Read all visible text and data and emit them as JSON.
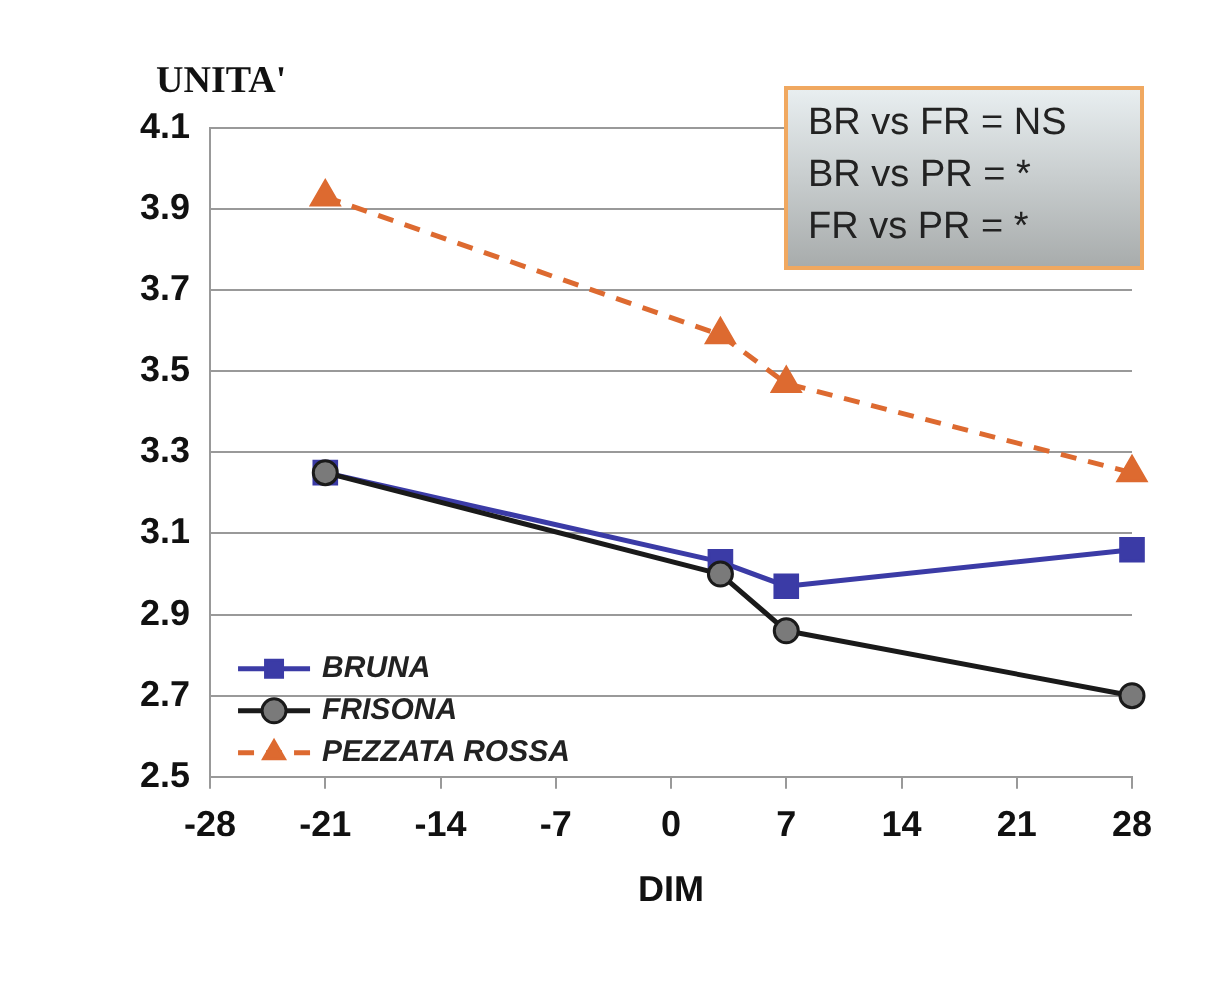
{
  "chart_data": {
    "type": "line",
    "ylabel": "UNITA'",
    "xlabel": "DIM",
    "x": [
      -21,
      3,
      7,
      28
    ],
    "series": [
      {
        "name": "BRUNA",
        "color": "#3b3ba6",
        "values": [
          3.25,
          3.03,
          2.97,
          3.06
        ],
        "marker": "square",
        "line_style": "solid"
      },
      {
        "name": "FRISONA",
        "color": "#1a1a1a",
        "values": [
          3.25,
          3.0,
          2.86,
          2.7
        ],
        "marker": "circle",
        "line_style": "solid"
      },
      {
        "name": "PEZZATA ROSSA",
        "color": "#dd6a30",
        "values": [
          3.93,
          3.59,
          3.47,
          3.25
        ],
        "marker": "triangle",
        "line_style": "dashed"
      }
    ],
    "xlim": [
      -28,
      28
    ],
    "xticks": [
      -28,
      -21,
      -14,
      -7,
      0,
      7,
      14,
      21,
      28
    ],
    "ylim": [
      2.5,
      4.1
    ],
    "yticks": [
      2.5,
      2.7,
      2.9,
      3.1,
      3.3,
      3.5,
      3.7,
      3.9,
      4.1
    ],
    "grid": "y",
    "legend": "bottom left",
    "annotations": [
      "BR vs FR = NS",
      "BR vs PR = *",
      "FR vs PR = *"
    ]
  }
}
